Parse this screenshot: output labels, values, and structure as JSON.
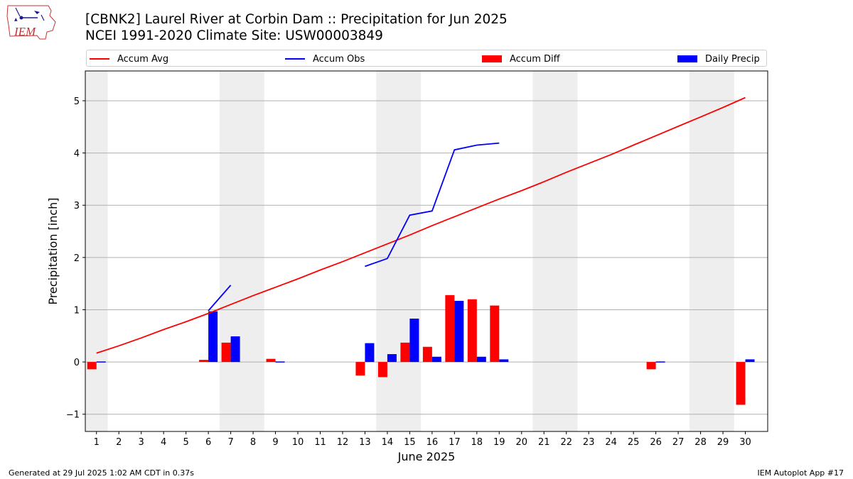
{
  "header": {
    "title": "[CBNK2] Laurel River at Corbin Dam :: Precipitation for Jun 2025",
    "subtitle": "NCEI 1991-2020 Climate Site: USW00003849",
    "logo_text": "IEM"
  },
  "legend": {
    "items": [
      {
        "label": "Accum Avg",
        "kind": "line",
        "color": "#ff0000"
      },
      {
        "label": "Accum Obs",
        "kind": "line",
        "color": "#0000ff"
      },
      {
        "label": "Accum Diff",
        "kind": "box",
        "color": "#ff0000"
      },
      {
        "label": "Daily Precip",
        "kind": "box",
        "color": "#0000ff"
      }
    ]
  },
  "footer": {
    "left": "Generated at 29 Jul 2025 1:02 AM CDT in 0.37s",
    "right": "IEM Autoplot App #17"
  },
  "chart_data": {
    "type": "bar",
    "xlabel": "June 2025",
    "ylabel": "Precipitation [inch]",
    "xlim": [
      0.5,
      31.0
    ],
    "ylim": [
      -1.33,
      5.57
    ],
    "yticks": [
      -1,
      0,
      1,
      2,
      3,
      4,
      5
    ],
    "ytick_labels": [
      "−1",
      "0",
      "1",
      "2",
      "3",
      "4",
      "5"
    ],
    "x": [
      1,
      2,
      3,
      4,
      5,
      6,
      7,
      8,
      9,
      10,
      11,
      12,
      13,
      14,
      15,
      16,
      17,
      18,
      19,
      20,
      21,
      22,
      23,
      24,
      25,
      26,
      27,
      28,
      29,
      30
    ],
    "grid": "horizontal",
    "weekend_shading": [
      [
        0.5,
        1.5
      ],
      [
        6.5,
        8.5
      ],
      [
        13.5,
        15.5
      ],
      [
        20.5,
        22.5
      ],
      [
        27.5,
        29.5
      ]
    ],
    "series": [
      {
        "name": "Accum Avg",
        "type": "line",
        "color": "#ff0000",
        "values": [
          0.17,
          0.31,
          0.46,
          0.62,
          0.77,
          0.93,
          1.1,
          1.27,
          1.43,
          1.59,
          1.76,
          1.92,
          2.09,
          2.26,
          2.43,
          2.61,
          2.78,
          2.95,
          3.12,
          3.28,
          3.45,
          3.63,
          3.8,
          3.97,
          4.15,
          4.33,
          4.51,
          4.69,
          4.87,
          5.06
        ]
      },
      {
        "name": "Accum Obs",
        "type": "line",
        "color": "#0000ff",
        "values": [
          null,
          null,
          null,
          null,
          null,
          0.98,
          1.47,
          null,
          null,
          null,
          null,
          null,
          1.83,
          1.98,
          2.81,
          2.89,
          4.06,
          4.15,
          4.19,
          null,
          null,
          null,
          null,
          null,
          null,
          null,
          null,
          null,
          null,
          null
        ]
      },
      {
        "name": "Accum Diff",
        "type": "bar",
        "color": "#ff0000",
        "values": [
          -0.14,
          0,
          0,
          0,
          0,
          0.04,
          0.37,
          0,
          0.06,
          0,
          0,
          0,
          -0.26,
          -0.29,
          0.37,
          0.29,
          1.28,
          1.2,
          1.08,
          0,
          0,
          0,
          0,
          0,
          0,
          -0.14,
          0,
          0,
          0,
          -0.82
        ]
      },
      {
        "name": "Daily Precip",
        "type": "bar",
        "color": "#0000ff",
        "values": [
          0.01,
          0,
          0,
          0,
          0,
          0.97,
          0.49,
          0,
          0.01,
          0,
          0,
          0,
          0.36,
          0.15,
          0.83,
          0.1,
          1.17,
          0.1,
          0.05,
          0,
          0,
          0,
          0,
          0,
          0,
          0.01,
          0,
          0,
          0,
          0.05
        ]
      }
    ]
  }
}
